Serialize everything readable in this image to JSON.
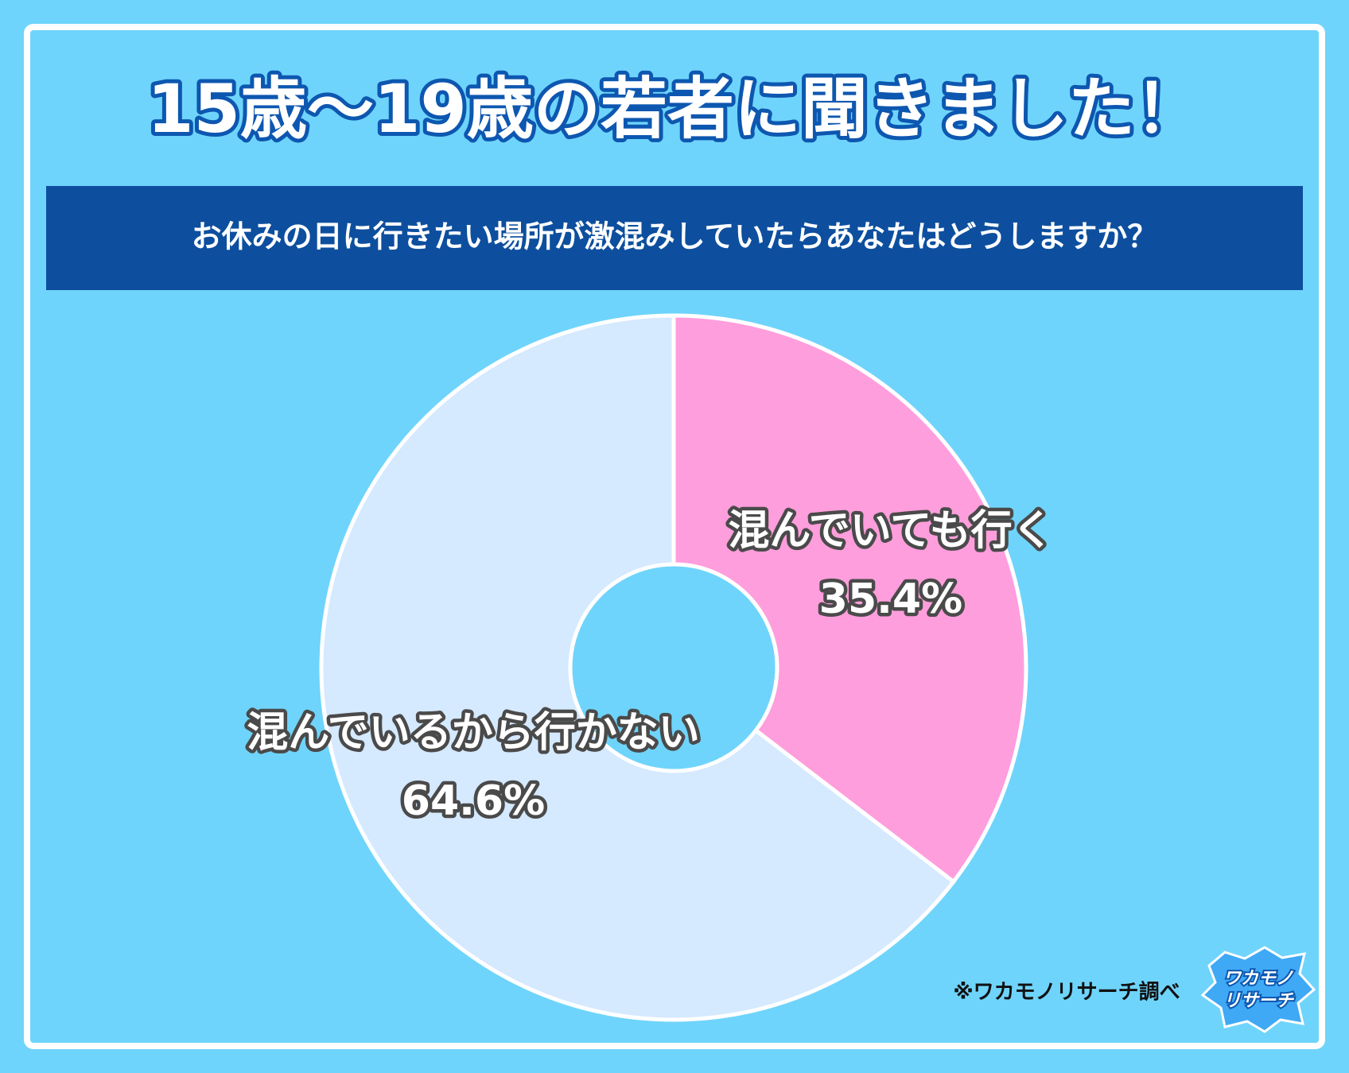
{
  "chart_data": {
    "type": "pie",
    "title": "15歳〜19歳の若者に聞きました！",
    "subtitle": "お休みの日に行きたい場所が激混みしていたらあなたはどうしますか？",
    "categories": [
      "混んでいても行く",
      "混んでいるから行かない"
    ],
    "values": [
      35.4,
      64.6
    ],
    "value_labels": [
      "35.4%",
      "64.6%"
    ],
    "colors": [
      "#ff9edc",
      "#d5e9ff"
    ],
    "donut": true,
    "source": "※ワカモノリサーチ調べ"
  },
  "logo": [
    "ワカモノ",
    "リサーチ"
  ]
}
